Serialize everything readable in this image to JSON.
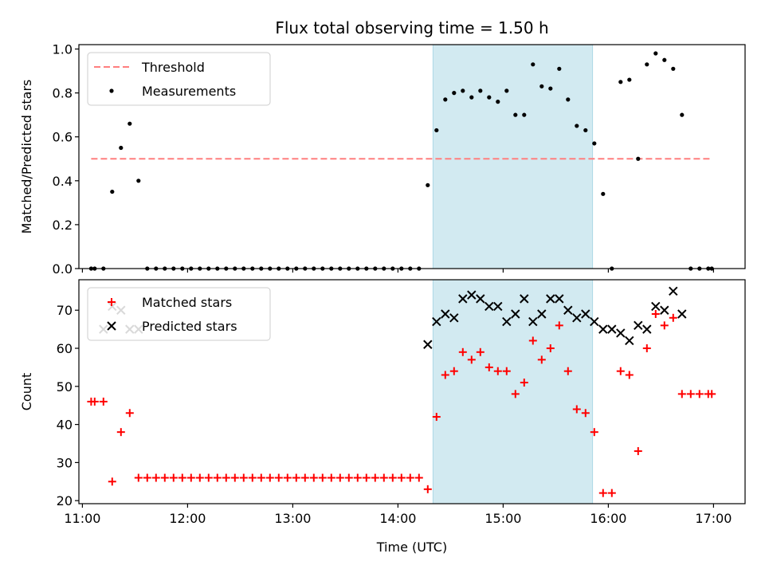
{
  "title": "Flux total observing time = 1.50 h",
  "x_tick_labels": [
    "11:00",
    "12:00",
    "13:00",
    "14:00",
    "15:00",
    "16:00",
    "17:00"
  ],
  "xlabel": "Time (UTC)",
  "chart_data": [
    {
      "type": "scatter",
      "title": "Flux total observing time = 1.50 h",
      "ylabel": "Matched/Predicted stars",
      "xlabel": "",
      "xlim": [
        "10:58",
        "17:18"
      ],
      "ylim": [
        0,
        1.02
      ],
      "y_ticks": [
        "0.0",
        "0.2",
        "0.4",
        "0.6",
        "0.8",
        "1.0"
      ],
      "legend": {
        "position": "top-left",
        "entries": [
          "Threshold",
          "Measurements"
        ]
      },
      "highlight_span": {
        "x": [
          "14:20",
          "15:51"
        ],
        "color": "#add8e6"
      },
      "series": [
        {
          "name": "Threshold",
          "style": "dashed-line",
          "color": "#ff7f7f",
          "x": [
            "11:05",
            "16:58"
          ],
          "y": [
            0.5,
            0.5
          ]
        },
        {
          "name": "Measurements",
          "style": "dot",
          "color": "#000000",
          "x": [
            "11:05",
            "11:07",
            "11:12",
            "11:17",
            "11:22",
            "11:27",
            "11:32",
            "11:37",
            "11:42",
            "11:47",
            "11:52",
            "11:57",
            "12:02",
            "12:07",
            "12:12",
            "12:17",
            "12:22",
            "12:27",
            "12:32",
            "12:37",
            "12:42",
            "12:47",
            "12:52",
            "12:57",
            "13:02",
            "13:07",
            "13:12",
            "13:17",
            "13:22",
            "13:27",
            "13:32",
            "13:37",
            "13:42",
            "13:47",
            "13:52",
            "13:57",
            "14:02",
            "14:07",
            "14:12",
            "14:17",
            "14:22",
            "14:27",
            "14:32",
            "14:37",
            "14:42",
            "14:47",
            "14:52",
            "14:57",
            "15:02",
            "15:07",
            "15:12",
            "15:17",
            "15:22",
            "15:27",
            "15:32",
            "15:37",
            "15:42",
            "15:47",
            "15:52",
            "15:57",
            "16:02",
            "16:07",
            "16:12",
            "16:17",
            "16:22",
            "16:27",
            "16:32",
            "16:37",
            "16:42",
            "16:47",
            "16:52",
            "16:57",
            "16:59"
          ],
          "y": [
            0,
            0,
            0,
            0.35,
            0.55,
            0.66,
            0.4,
            0,
            0,
            0,
            0,
            0,
            0,
            0,
            0,
            0,
            0,
            0,
            0,
            0,
            0,
            0,
            0,
            0,
            0,
            0,
            0,
            0,
            0,
            0,
            0,
            0,
            0,
            0,
            0,
            0,
            0,
            0,
            0,
            0.38,
            0.63,
            0.77,
            0.8,
            0.81,
            0.78,
            0.81,
            0.78,
            0.76,
            0.81,
            0.7,
            0.7,
            0.93,
            0.83,
            0.82,
            0.91,
            0.77,
            0.65,
            0.63,
            0.57,
            0.34,
            0,
            0.85,
            0.86,
            0.5,
            0.93,
            0.98,
            0.95,
            0.91,
            0.7,
            0,
            0,
            0,
            0
          ]
        }
      ]
    },
    {
      "type": "scatter",
      "title": "",
      "ylabel": "Count",
      "xlabel": "Time (UTC)",
      "xlim": [
        "10:58",
        "17:18"
      ],
      "ylim": [
        19.2,
        78
      ],
      "y_ticks": [
        "20",
        "30",
        "40",
        "50",
        "60",
        "70"
      ],
      "legend": {
        "position": "top-left",
        "entries": [
          "Matched stars",
          "Predicted stars"
        ]
      },
      "highlight_span": {
        "x": [
          "14:20",
          "15:51"
        ],
        "color": "#add8e6"
      },
      "series": [
        {
          "name": "Matched stars",
          "marker": "+",
          "color": "#ff0000",
          "x": [
            "11:05",
            "11:07",
            "11:12",
            "11:17",
            "11:22",
            "11:27",
            "11:32",
            "11:37",
            "11:42",
            "11:47",
            "11:52",
            "11:57",
            "12:02",
            "12:07",
            "12:12",
            "12:17",
            "12:22",
            "12:27",
            "12:32",
            "12:37",
            "12:42",
            "12:47",
            "12:52",
            "12:57",
            "13:02",
            "13:07",
            "13:12",
            "13:17",
            "13:22",
            "13:27",
            "13:32",
            "13:37",
            "13:42",
            "13:47",
            "13:52",
            "13:57",
            "14:02",
            "14:07",
            "14:12",
            "14:17",
            "14:22",
            "14:27",
            "14:32",
            "14:37",
            "14:42",
            "14:47",
            "14:52",
            "14:57",
            "15:02",
            "15:07",
            "15:12",
            "15:17",
            "15:22",
            "15:27",
            "15:32",
            "15:37",
            "15:42",
            "15:47",
            "15:52",
            "15:57",
            "16:02",
            "16:07",
            "16:12",
            "16:17",
            "16:22",
            "16:27",
            "16:32",
            "16:37",
            "16:42",
            "16:47",
            "16:52",
            "16:57",
            "16:59"
          ],
          "y": [
            46,
            46,
            46,
            25,
            38,
            43,
            26,
            26,
            26,
            26,
            26,
            26,
            26,
            26,
            26,
            26,
            26,
            26,
            26,
            26,
            26,
            26,
            26,
            26,
            26,
            26,
            26,
            26,
            26,
            26,
            26,
            26,
            26,
            26,
            26,
            26,
            26,
            26,
            26,
            23,
            42,
            53,
            54,
            59,
            57,
            59,
            55,
            54,
            54,
            48,
            51,
            62,
            57,
            60,
            66,
            54,
            44,
            43,
            38,
            22,
            22,
            54,
            53,
            33,
            60,
            69,
            66,
            68,
            48,
            48,
            48,
            48,
            48
          ]
        },
        {
          "name": "Predicted stars",
          "marker": "x",
          "color": "#000000",
          "x": [
            "11:12",
            "11:17",
            "11:22",
            "11:27",
            "11:32",
            "14:17",
            "14:22",
            "14:27",
            "14:32",
            "14:37",
            "14:42",
            "14:47",
            "14:52",
            "14:57",
            "15:02",
            "15:07",
            "15:12",
            "15:17",
            "15:22",
            "15:27",
            "15:32",
            "15:37",
            "15:42",
            "15:47",
            "15:52",
            "15:57",
            "16:02",
            "16:07",
            "16:12",
            "16:17",
            "16:22",
            "16:27",
            "16:32",
            "16:37",
            "16:42"
          ],
          "y": [
            65,
            71,
            70,
            65,
            65,
            61,
            67,
            69,
            68,
            73,
            74,
            73,
            71,
            71,
            67,
            69,
            73,
            67,
            69,
            73,
            73,
            70,
            68,
            69,
            67,
            65,
            65,
            64,
            62,
            66,
            65,
            71,
            70,
            75,
            69
          ]
        }
      ]
    }
  ]
}
